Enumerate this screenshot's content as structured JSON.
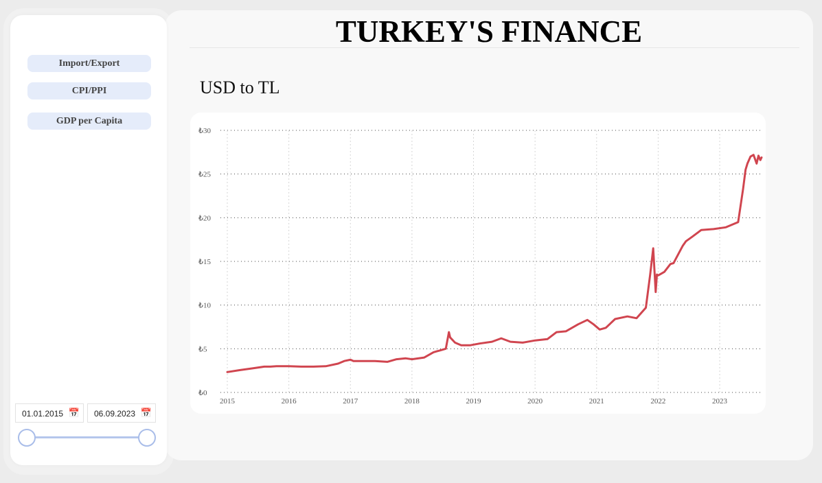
{
  "header": {
    "title": "TURKEY'S FINANCE"
  },
  "sidebar": {
    "nav": [
      {
        "label": "Import/Export"
      },
      {
        "label": "CPI/PPI"
      },
      {
        "label": "GDP per Capita"
      }
    ],
    "date_range": {
      "start": "01.01.2015",
      "end": "06.09.2023",
      "calendar_icon": "calendar-icon",
      "slider_start_fraction": 0.0,
      "slider_end_fraction": 1.0
    }
  },
  "colors": {
    "line": "#d0454f",
    "nav_bg": "#e5ecfa",
    "slider": "#b5c6ec"
  },
  "chart_data": {
    "type": "line",
    "title": "USD to TL",
    "xlabel": "",
    "ylabel": "",
    "y_tick_labels": [
      "₺0",
      "₺5",
      "₺10",
      "₺15",
      "₺20",
      "₺25",
      "₺30"
    ],
    "y_ticks": [
      0,
      5,
      10,
      15,
      20,
      25,
      30
    ],
    "ylim": [
      0,
      30
    ],
    "x_tick_labels": [
      "2015",
      "2016",
      "2017",
      "2018",
      "2019",
      "2020",
      "2021",
      "2022",
      "2023"
    ],
    "x_ticks": [
      2015,
      2016,
      2017,
      2018,
      2019,
      2020,
      2021,
      2022,
      2023
    ],
    "xlim": [
      2015.0,
      2023.68
    ],
    "grid": true,
    "series": [
      {
        "x": [
          2015.0,
          2015.2,
          2015.4,
          2015.6,
          2015.7,
          2015.8,
          2016.0,
          2016.2,
          2016.4,
          2016.6,
          2016.8,
          2016.9,
          2017.0,
          2017.05,
          2017.2,
          2017.4,
          2017.6,
          2017.75,
          2017.9,
          2018.0,
          2018.2,
          2018.35,
          2018.45,
          2018.55,
          2018.6,
          2018.62,
          2018.7,
          2018.8,
          2018.95,
          2019.1,
          2019.3,
          2019.45,
          2019.6,
          2019.8,
          2020.0,
          2020.2,
          2020.35,
          2020.5,
          2020.7,
          2020.85,
          2020.95,
          2021.05,
          2021.15,
          2021.3,
          2021.5,
          2021.65,
          2021.8,
          2021.87,
          2021.92,
          2021.96,
          2021.98,
          2022.0,
          2022.1,
          2022.2,
          2022.25,
          2022.4,
          2022.45,
          2022.55,
          2022.7,
          2022.9,
          2023.1,
          2023.3,
          2023.38,
          2023.42,
          2023.45,
          2023.5,
          2023.55,
          2023.6,
          2023.63,
          2023.66,
          2023.68
        ],
        "y": [
          2.33,
          2.55,
          2.75,
          2.95,
          2.95,
          3.0,
          3.0,
          2.95,
          2.95,
          3.0,
          3.3,
          3.6,
          3.75,
          3.6,
          3.6,
          3.6,
          3.5,
          3.8,
          3.9,
          3.8,
          4.0,
          4.6,
          4.8,
          5.0,
          6.9,
          6.3,
          5.7,
          5.4,
          5.4,
          5.6,
          5.8,
          6.2,
          5.8,
          5.7,
          5.95,
          6.1,
          6.9,
          7.0,
          7.8,
          8.3,
          7.8,
          7.2,
          7.4,
          8.4,
          8.7,
          8.5,
          9.7,
          13.5,
          16.5,
          11.5,
          13.5,
          13.4,
          13.8,
          14.7,
          14.8,
          16.8,
          17.3,
          17.8,
          18.6,
          18.7,
          18.9,
          19.5,
          23.3,
          25.5,
          26.2,
          27.0,
          27.2,
          26.2,
          27.1,
          26.6,
          26.9
        ]
      }
    ]
  }
}
